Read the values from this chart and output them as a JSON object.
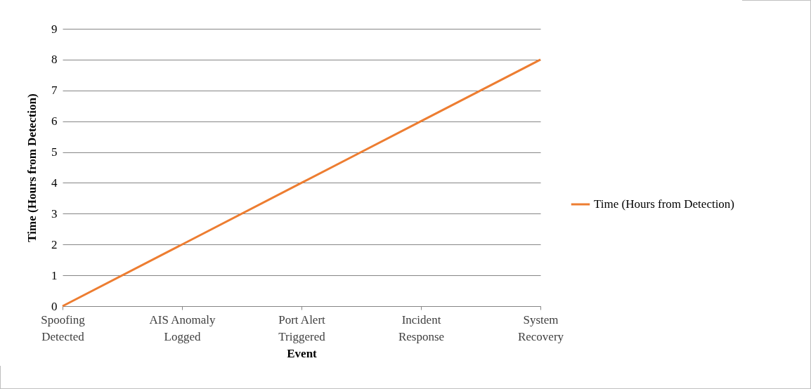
{
  "chart_data": {
    "type": "line",
    "xlabel": "Event",
    "ylabel": "Time (Hours from Detection)",
    "categories": [
      "Spoofing Detected",
      "AIS Anomaly Logged",
      "Port Alert Triggered",
      "Incident Response",
      "System Recovery"
    ],
    "series": [
      {
        "name": "Time (Hours from Detection)",
        "color": "#ed7d31",
        "values": [
          0,
          2,
          4,
          6,
          8
        ]
      }
    ],
    "ylim": [
      0,
      9
    ],
    "yticks": [
      0,
      1,
      2,
      3,
      4,
      5,
      6,
      7,
      8,
      9
    ],
    "grid": "y",
    "legend": "right",
    "marker": "none"
  }
}
